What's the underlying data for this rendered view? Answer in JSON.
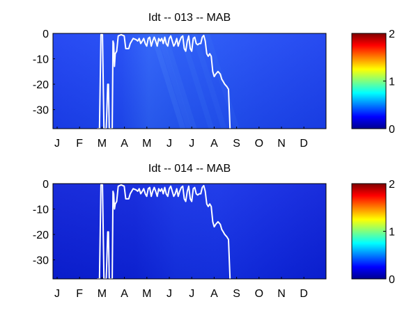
{
  "chart_data": [
    {
      "type": "heatmap",
      "title": "Idt -- 013 -- MAB",
      "xlabel": "",
      "ylabel": "",
      "x_ticks": [
        "J",
        "F",
        "M",
        "A",
        "M",
        "J",
        "J",
        "A",
        "S",
        "O",
        "N",
        "D"
      ],
      "y_ticks": [
        "0",
        "-10",
        "-20",
        "-30"
      ],
      "ylim": [
        -37.5,
        0
      ],
      "xlim": [
        1,
        365
      ],
      "colorbar": {
        "ticks": [
          "0",
          "1",
          "2"
        ],
        "range": [
          0,
          2
        ],
        "colormap": "jet"
      },
      "field_description_values": {
        "early_background": 0.3,
        "summer_background": 0.38,
        "late_background": 0.3
      },
      "line_series": {
        "color": "#ffffff",
        "points": [
          [
            60,
            -37.5
          ],
          [
            63,
            -37.5
          ],
          [
            65,
            -0.5
          ],
          [
            67,
            -0.5
          ],
          [
            69,
            -37.5
          ],
          [
            72,
            -37.5
          ],
          [
            74,
            -20
          ],
          [
            75,
            -20
          ],
          [
            76,
            -37.5
          ],
          [
            80,
            -37.5
          ],
          [
            81,
            -3
          ],
          [
            82,
            -4
          ],
          [
            83,
            -13
          ],
          [
            84,
            -8
          ],
          [
            86,
            -7
          ],
          [
            88,
            -1
          ],
          [
            92,
            -0.5
          ],
          [
            96,
            -1
          ],
          [
            98,
            -6
          ],
          [
            102,
            -6
          ],
          [
            104,
            -4
          ],
          [
            108,
            -2
          ],
          [
            112,
            -2.5
          ],
          [
            114,
            -3
          ],
          [
            116,
            -2
          ],
          [
            118,
            -4
          ],
          [
            120,
            -3
          ],
          [
            122,
            -2
          ],
          [
            124,
            -4
          ],
          [
            126,
            -5
          ],
          [
            128,
            -2
          ],
          [
            130,
            -1.5
          ],
          [
            132,
            -5
          ],
          [
            134,
            -3
          ],
          [
            136,
            -1.5
          ],
          [
            138,
            -3
          ],
          [
            140,
            -5
          ],
          [
            142,
            -2
          ],
          [
            144,
            -3
          ],
          [
            146,
            -2
          ],
          [
            148,
            -4
          ],
          [
            150,
            -1.5
          ],
          [
            152,
            -4
          ],
          [
            154,
            -5
          ],
          [
            156,
            -2
          ],
          [
            158,
            -1
          ],
          [
            160,
            -3
          ],
          [
            162,
            -5
          ],
          [
            164,
            -4
          ],
          [
            166,
            -2
          ],
          [
            168,
            -5
          ],
          [
            170,
            -3
          ],
          [
            172,
            -1.5
          ],
          [
            174,
            -1
          ],
          [
            176,
            -6
          ],
          [
            178,
            -7
          ],
          [
            180,
            -3
          ],
          [
            182,
            -1
          ],
          [
            184,
            -6
          ],
          [
            186,
            -7
          ],
          [
            188,
            -2
          ],
          [
            190,
            -1.5
          ],
          [
            192,
            -4
          ],
          [
            194,
            -4.5
          ],
          [
            196,
            -4
          ],
          [
            198,
            -4
          ],
          [
            200,
            -1.5
          ],
          [
            202,
            -0.8
          ],
          [
            204,
            -3
          ],
          [
            206,
            -8
          ],
          [
            208,
            -9
          ],
          [
            210,
            -8
          ],
          [
            212,
            -9
          ],
          [
            214,
            -15
          ],
          [
            216,
            -17
          ],
          [
            218,
            -16
          ],
          [
            221,
            -15
          ],
          [
            224,
            -16
          ],
          [
            226,
            -18
          ],
          [
            228,
            -19
          ],
          [
            230,
            -20
          ],
          [
            233,
            -21
          ],
          [
            235,
            -22
          ],
          [
            237,
            -37.5
          ]
        ]
      }
    },
    {
      "type": "heatmap",
      "title": "Idt -- 014 -- MAB",
      "xlabel": "",
      "ylabel": "",
      "x_ticks": [
        "J",
        "F",
        "M",
        "A",
        "M",
        "J",
        "J",
        "A",
        "S",
        "O",
        "N",
        "D"
      ],
      "y_ticks": [
        "0",
        "-10",
        "-20",
        "-30"
      ],
      "ylim": [
        -37.5,
        0
      ],
      "xlim": [
        1,
        365
      ],
      "colorbar": {
        "ticks": [
          "0",
          "1",
          "2"
        ],
        "range": [
          0,
          2
        ],
        "colormap": "jet"
      },
      "field_description_values": {
        "early_background": 0.15,
        "summer_background": 0.22,
        "late_background": 0.18
      },
      "line_series": {
        "color": "#ffffff",
        "points": [
          [
            60,
            -37.5
          ],
          [
            63,
            -37.5
          ],
          [
            65,
            -0.5
          ],
          [
            67,
            -0.5
          ],
          [
            69,
            -37.5
          ],
          [
            72,
            -37.5
          ],
          [
            74,
            -19
          ],
          [
            75,
            -19
          ],
          [
            76,
            -37.5
          ],
          [
            80,
            -37.5
          ],
          [
            81,
            -3
          ],
          [
            82,
            -4
          ],
          [
            83,
            -10
          ],
          [
            84,
            -8
          ],
          [
            86,
            -7
          ],
          [
            88,
            -1
          ],
          [
            92,
            -0.5
          ],
          [
            96,
            -1
          ],
          [
            98,
            -6
          ],
          [
            102,
            -6
          ],
          [
            104,
            -4
          ],
          [
            108,
            -2
          ],
          [
            112,
            -2.5
          ],
          [
            114,
            -3
          ],
          [
            116,
            -2
          ],
          [
            118,
            -4
          ],
          [
            120,
            -3
          ],
          [
            122,
            -2
          ],
          [
            124,
            -4
          ],
          [
            126,
            -5
          ],
          [
            128,
            -2
          ],
          [
            130,
            -1.5
          ],
          [
            132,
            -5
          ],
          [
            134,
            -3
          ],
          [
            136,
            -1.5
          ],
          [
            138,
            -3
          ],
          [
            140,
            -5
          ],
          [
            142,
            -2
          ],
          [
            144,
            -3
          ],
          [
            146,
            -2
          ],
          [
            148,
            -4
          ],
          [
            150,
            -1.5
          ],
          [
            152,
            -4
          ],
          [
            154,
            -5
          ],
          [
            156,
            -2
          ],
          [
            158,
            -1
          ],
          [
            160,
            -3
          ],
          [
            162,
            -5
          ],
          [
            164,
            -4
          ],
          [
            166,
            -2
          ],
          [
            168,
            -5
          ],
          [
            170,
            -3
          ],
          [
            172,
            -1.5
          ],
          [
            174,
            -1
          ],
          [
            176,
            -6
          ],
          [
            178,
            -7
          ],
          [
            180,
            -3
          ],
          [
            182,
            -1
          ],
          [
            184,
            -6
          ],
          [
            186,
            -7
          ],
          [
            188,
            -2
          ],
          [
            190,
            -1.5
          ],
          [
            192,
            -4
          ],
          [
            194,
            -4.5
          ],
          [
            196,
            -4
          ],
          [
            198,
            -4
          ],
          [
            200,
            -1.5
          ],
          [
            202,
            -0.8
          ],
          [
            204,
            -3
          ],
          [
            206,
            -8
          ],
          [
            208,
            -9
          ],
          [
            210,
            -8
          ],
          [
            212,
            -9
          ],
          [
            214,
            -15
          ],
          [
            216,
            -17
          ],
          [
            218,
            -16
          ],
          [
            221,
            -15
          ],
          [
            224,
            -16
          ],
          [
            226,
            -18
          ],
          [
            228,
            -19
          ],
          [
            230,
            -20
          ],
          [
            233,
            -21
          ],
          [
            235,
            -22
          ],
          [
            237,
            -37.5
          ]
        ]
      }
    }
  ]
}
